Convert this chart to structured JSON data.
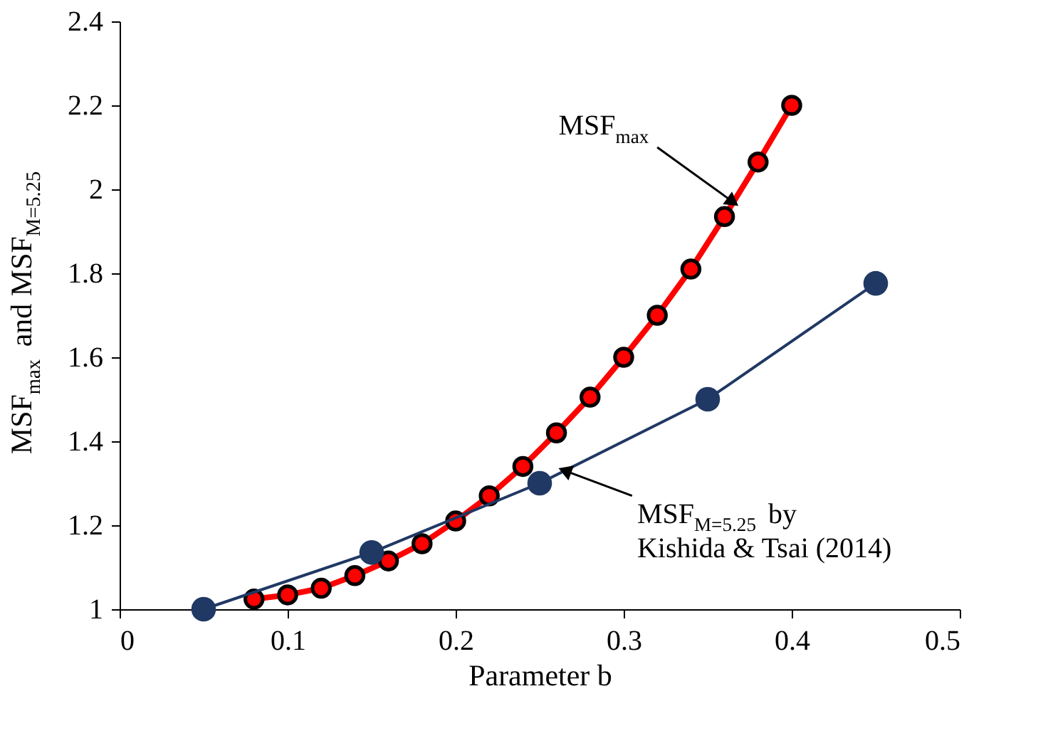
{
  "chart_data": {
    "type": "line",
    "xlabel": "Parameter b",
    "ylabel": "MSF$_{max}$ and MSF$_{M=5.25}$",
    "xlim": [
      0,
      0.5
    ],
    "xticks": [
      0,
      0.1,
      0.2,
      0.3,
      0.4,
      0.5
    ],
    "ylim": [
      1,
      2.4
    ],
    "yticks": [
      1,
      1.2,
      1.4,
      1.6,
      1.8,
      2,
      2.2,
      2.4
    ],
    "grid": false,
    "marker": "circle",
    "line_style": "solid",
    "series": [
      {
        "color": "#ff0000",
        "x": [
          0.08,
          0.1,
          0.12,
          0.14,
          0.16,
          0.18,
          0.2,
          0.22,
          0.24,
          0.26,
          0.28,
          0.3,
          0.32,
          0.34,
          0.36,
          0.38,
          0.4
        ],
        "values": [
          1.024,
          1.034,
          1.05,
          1.08,
          1.115,
          1.156,
          1.21,
          1.27,
          1.34,
          1.42,
          1.505,
          1.6,
          1.7,
          1.81,
          1.935,
          2.065,
          2.2
        ]
      },
      {
        "color": "#203864",
        "x": [
          0.05,
          0.15,
          0.25,
          0.35,
          0.45
        ],
        "values": [
          1,
          1.135,
          1.3,
          1.5,
          1.776
        ]
      }
    ],
    "annotations": [
      {
        "text": "MSF$_{max}$",
        "x": 0.365,
        "y": 1.97
      },
      {
        "text": "MSF$_{M=5.25}$ by\nKishida & Tsai (2014)",
        "x": 0.265,
        "y": 1.33
      }
    ]
  }
}
